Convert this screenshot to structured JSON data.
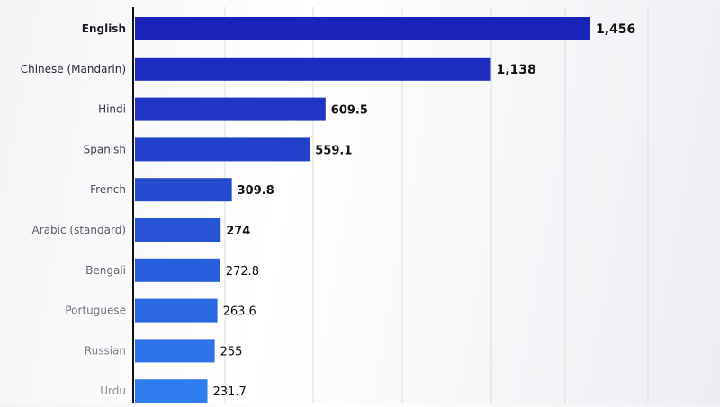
{
  "chart_data": {
    "type": "bar",
    "orientation": "horizontal",
    "categories": [
      "English",
      "Chinese (Mandarin)",
      "Hindi",
      "Spanish",
      "French",
      "Arabic (standard)",
      "Bengali",
      "Portuguese",
      "Russian",
      "Urdu"
    ],
    "values": [
      1456,
      1138,
      609.5,
      559.1,
      309.8,
      274,
      272.8,
      263.6,
      255,
      231.7
    ],
    "value_labels": [
      "1,456",
      "1,138",
      "609.5",
      "559.1",
      "309.8",
      "274",
      "272.8",
      "263.6",
      "255",
      "231.7"
    ],
    "title": "",
    "xlabel": "",
    "ylabel": "",
    "xlim": [
      0,
      1800
    ],
    "grid": true,
    "legend": "none"
  },
  "colors": {
    "bar_top": "#1a22b8",
    "bar_bottom": "#2f7cec",
    "gridline": "#d9dbe0",
    "axis": "#111111",
    "category_text_top": "#1b1b2a",
    "category_text_bottom": "#8a8f9a",
    "value_text": "#111111"
  }
}
